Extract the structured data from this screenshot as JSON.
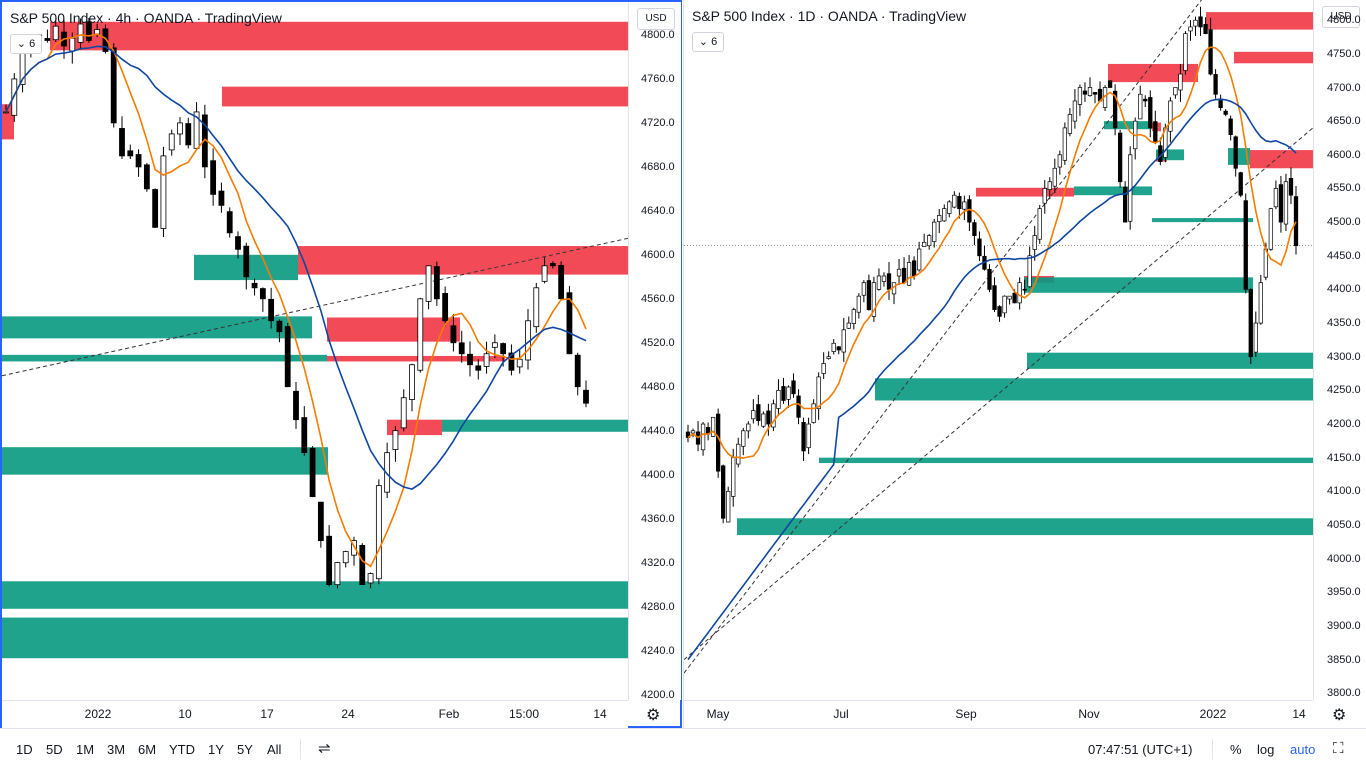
{
  "left_chart": {
    "title": "S&P 500 Index · 4h · OANDA · TradingView",
    "collapse_label": "6",
    "currency": "USD",
    "price_ticks": [
      "4800.0",
      "4760.0",
      "4720.0",
      "4680.0",
      "4640.0",
      "4600.0",
      "4560.0",
      "4520.0",
      "4480.0",
      "4440.0",
      "4400.0",
      "4360.0",
      "4320.0",
      "4280.0",
      "4240.0",
      "4200.0"
    ],
    "date_ticks": [
      "2022",
      "10",
      "17",
      "24",
      "Feb",
      "15:00",
      "14"
    ],
    "price_range": [
      4195,
      4830
    ],
    "red_zones": [
      [
        4812,
        4786
      ],
      [
        4753,
        4735
      ],
      [
        4737,
        4705
      ],
      [
        4608,
        4582
      ],
      [
        4543,
        4521
      ],
      [
        4508,
        4503
      ],
      [
        4450,
        4436
      ]
    ],
    "green_zones": [
      [
        4600,
        4577
      ],
      [
        4544,
        4524
      ],
      [
        4509,
        4503
      ],
      [
        4450,
        4439
      ],
      [
        4425,
        4400
      ],
      [
        4303,
        4278
      ],
      [
        4270,
        4233
      ]
    ],
    "last_value": 4465
  },
  "right_chart": {
    "title": "S&P 500 Index · 1D · OANDA · TradingView",
    "collapse_label": "6",
    "currency": "USD",
    "price_ticks": [
      "4800.0",
      "4750.0",
      "4700.0",
      "4650.0",
      "4600.0",
      "4550.0",
      "4500.0",
      "4450.0",
      "4400.0",
      "4350.0",
      "4300.0",
      "4250.0",
      "4200.0",
      "4150.0",
      "4100.0",
      "4050.0",
      "4000.0",
      "3950.0",
      "3900.0",
      "3850.0",
      "3800.0"
    ],
    "date_ticks": [
      "May",
      "Jul",
      "Sep",
      "Nov",
      "2022",
      "14"
    ],
    "price_range": [
      3790,
      4830
    ],
    "last_value": 4465
  },
  "bottom_bar": {
    "timeframes": [
      "1D",
      "5D",
      "1M",
      "3M",
      "6M",
      "YTD",
      "1Y",
      "5Y",
      "All"
    ],
    "time": "07:47:51 (UTC+1)",
    "percent": "%",
    "log": "log",
    "auto": "auto"
  },
  "colors": {
    "red_zone": "#f23645",
    "green_zone": "#089981",
    "ma_fast": "#f57c00",
    "ma_slow": "#0d47a1",
    "candle": "#000000",
    "accent": "#2962ff"
  }
}
